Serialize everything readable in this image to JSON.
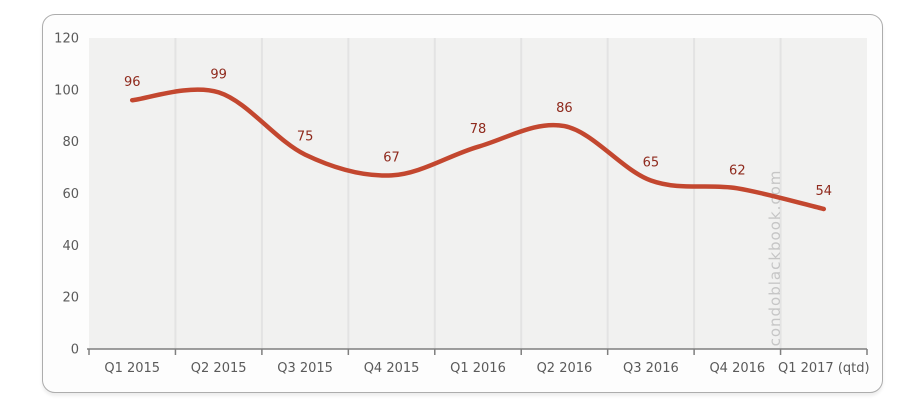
{
  "watermark": "condoblackbook.com",
  "chart_data": {
    "type": "line",
    "title": "",
    "xlabel": "",
    "ylabel": "",
    "categories": [
      "Q1 2015",
      "Q2 2015",
      "Q3 2015",
      "Q4 2015",
      "Q1 2016",
      "Q2 2016",
      "Q3 2016",
      "Q4 2016",
      "Q1 2017 (qtd)"
    ],
    "values": [
      96,
      99,
      75,
      67,
      78,
      86,
      65,
      62,
      54
    ],
    "data_labels": [
      "96",
      "99",
      "75",
      "67",
      "78",
      "86",
      "65",
      "62",
      "54"
    ],
    "ylim": [
      0,
      120
    ],
    "yticks": [
      0,
      20,
      40,
      60,
      80,
      100,
      120
    ],
    "grid": "vertical-only",
    "legend": "none",
    "smooth": true,
    "colors": {
      "line": "#c3472f",
      "data_label": "#8f2a1d",
      "axis_text": "#5a5a5a",
      "axis_line": "#7f7f7f",
      "plot_bg": "#f1f1f0",
      "gridline": "#e3e3e3",
      "card_bg": "#fdfdfd",
      "card_border": "#adadad",
      "watermark": "#c6c6c6"
    }
  }
}
